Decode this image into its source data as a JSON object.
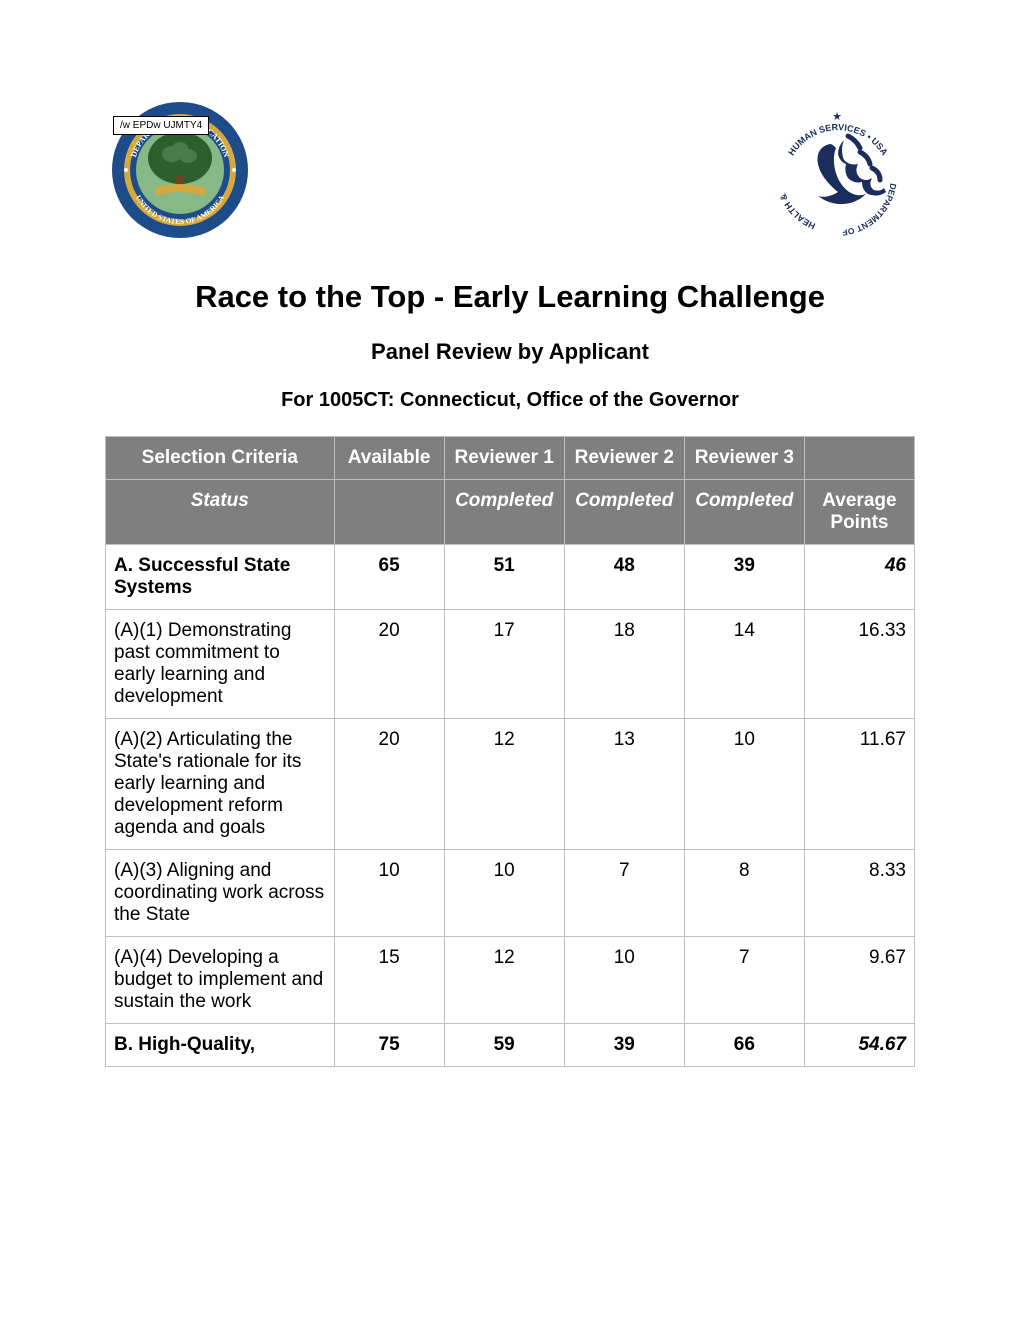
{
  "stamp_text": "/w EPDw UJMTY4",
  "main_title": "Race to the Top - Early Learning Challenge",
  "subtitle": "Panel Review by Applicant",
  "subject_line": "For 1005CT: Connecticut, Office of the Governor",
  "table": {
    "header_bg": "#7f7f7f",
    "header_fg": "#ffffff",
    "border_color": "#bfbfbf",
    "columns": [
      "Selection Criteria",
      "Available",
      "Reviewer 1",
      "Reviewer 2",
      "Reviewer 3",
      ""
    ],
    "status_row": [
      "Status",
      "",
      "Completed",
      "Completed",
      "Completed",
      "Average Points"
    ],
    "rows": [
      {
        "type": "section",
        "cells": [
          "A. Successful State Systems",
          "65",
          "51",
          "48",
          "39",
          "46"
        ]
      },
      {
        "type": "data",
        "cells": [
          "(A)(1) Demonstrating past commitment to early learning and development",
          "20",
          "17",
          "18",
          "14",
          "16.33"
        ]
      },
      {
        "type": "data",
        "cells": [
          "(A)(2) Articulating the State's rationale for its early learning and development reform agenda and goals",
          "20",
          "12",
          "13",
          "10",
          "11.67"
        ]
      },
      {
        "type": "data",
        "cells": [
          "(A)(3) Aligning and coordinating work across the State",
          "10",
          "10",
          "7",
          "8",
          "8.33"
        ]
      },
      {
        "type": "data",
        "cells": [
          "(A)(4) Developing a budget to implement and sustain the work",
          "15",
          "12",
          "10",
          "7",
          "9.67"
        ]
      },
      {
        "type": "section",
        "cells": [
          "B. High-Quality,",
          "75",
          "59",
          "39",
          "66",
          "54.67"
        ]
      }
    ]
  },
  "logos": {
    "doe_outer_ring": "#1e4b8a",
    "doe_inner_ring": "#d4a93f",
    "doe_center": "#2d5e2d",
    "doe_size": 140,
    "hhs_color": "#1a2d5c",
    "hhs_size": 140
  }
}
